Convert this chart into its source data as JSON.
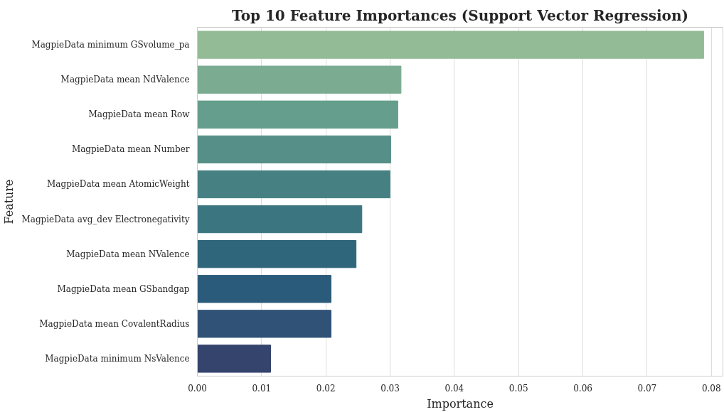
{
  "chart_data": {
    "type": "bar",
    "orientation": "horizontal",
    "title": "Top 10 Feature Importances (Support Vector Regression)",
    "xlabel": "Importance",
    "ylabel": "Feature",
    "categories": [
      "MagpieData minimum GSvolume_pa",
      "MagpieData mean NdValence",
      "MagpieData mean Row",
      "MagpieData mean Number",
      "MagpieData mean AtomicWeight",
      "MagpieData avg_dev Electronegativity",
      "MagpieData mean NValence",
      "MagpieData mean GSbandgap",
      "MagpieData mean CovalentRadius",
      "MagpieData minimum NsValence"
    ],
    "values": [
      0.0788,
      0.0317,
      0.0312,
      0.0301,
      0.03,
      0.0256,
      0.0247,
      0.0208,
      0.0208,
      0.0114
    ],
    "colors": [
      "#93bb96",
      "#7bac92",
      "#659e8c",
      "#558f87",
      "#468082",
      "#3b7580",
      "#2f667b",
      "#2b5b7a",
      "#2f5276",
      "#35446d"
    ],
    "xlim": [
      0,
      0.0818
    ],
    "xticks": [
      {
        "value": 0,
        "label": "0.00"
      },
      {
        "value": 0.01,
        "label": "0.01"
      },
      {
        "value": 0.02,
        "label": "0.02"
      },
      {
        "value": 0.03,
        "label": "0.03"
      },
      {
        "value": 0.04,
        "label": "0.04"
      },
      {
        "value": 0.05,
        "label": "0.05"
      },
      {
        "value": 0.06,
        "label": "0.06"
      },
      {
        "value": 0.07,
        "label": "0.07"
      },
      {
        "value": 0.08,
        "label": "0.08"
      }
    ],
    "grid": "x"
  }
}
